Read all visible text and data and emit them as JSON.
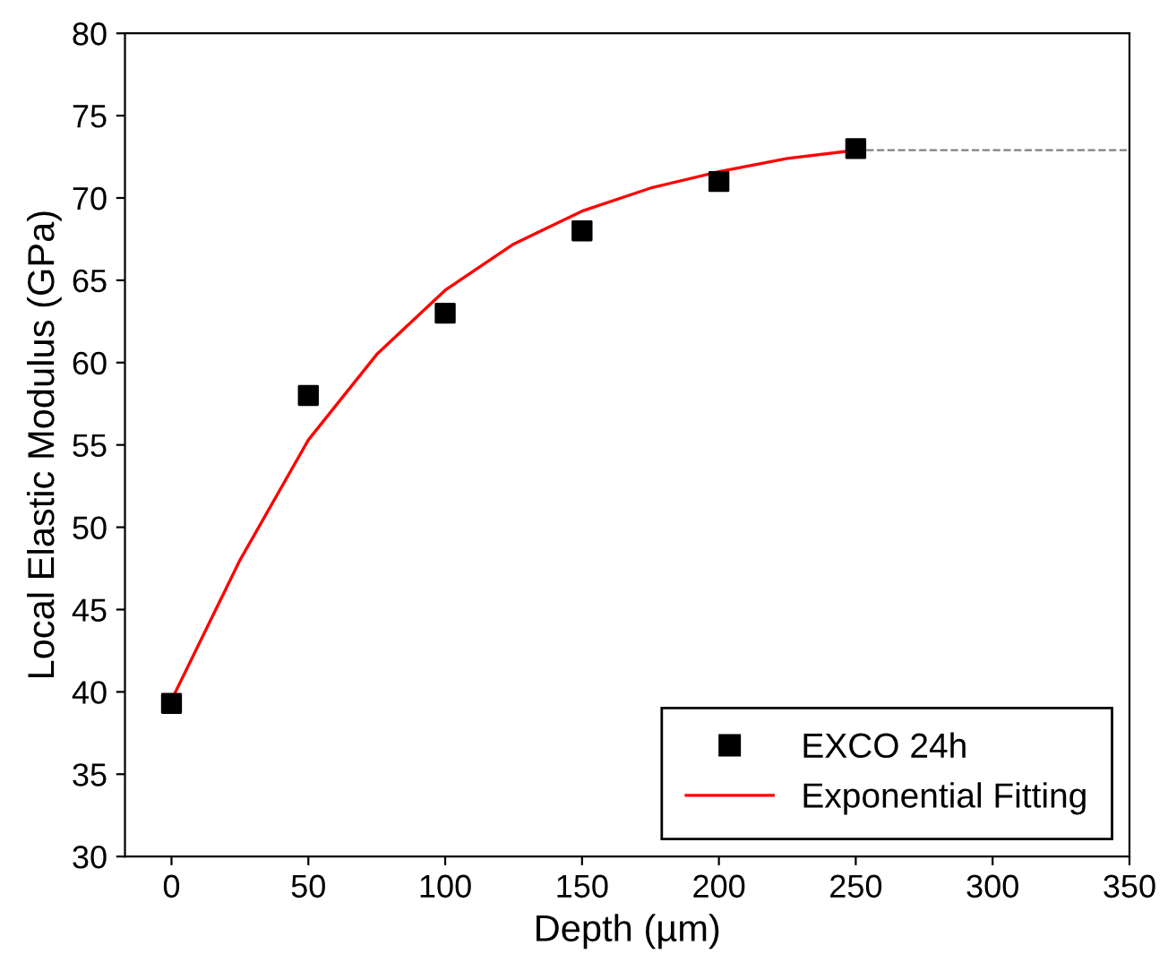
{
  "chart_data": {
    "type": "scatter",
    "xlabel": "Depth (µm)",
    "ylabel": "Local Elastic Modulus (GPa)",
    "x": [
      0,
      50,
      100,
      150,
      200,
      250
    ],
    "series": [
      {
        "name": "EXCO 24h",
        "color": "#000000",
        "marker": "square",
        "values": [
          39.3,
          58,
          63,
          68,
          71,
          73
        ]
      },
      {
        "name": "Exponential Fitting",
        "type": "line",
        "color": "#ff0000",
        "marker": "none",
        "line_style": "solid",
        "x": [
          0,
          25,
          50,
          75,
          100,
          125,
          150,
          175,
          200,
          225,
          250
        ],
        "values": [
          39.5,
          48,
          55.3,
          60.5,
          64.4,
          67.2,
          69.2,
          70.6,
          71.6,
          72.4,
          72.9
        ]
      },
      {
        "type": "line",
        "color": "#808080",
        "marker": "none",
        "line_style": "dashed",
        "x": [
          250,
          350
        ],
        "values": [
          72.9,
          72.9
        ]
      }
    ],
    "xlim": [
      -17,
      350
    ],
    "xticks": [
      0,
      50,
      100,
      150,
      200,
      250,
      300,
      350
    ],
    "ylim": [
      30,
      80
    ],
    "yticks": [
      30,
      35,
      40,
      45,
      50,
      55,
      60,
      65,
      70,
      75,
      80
    ],
    "grid": false,
    "legend": "bottom right"
  }
}
